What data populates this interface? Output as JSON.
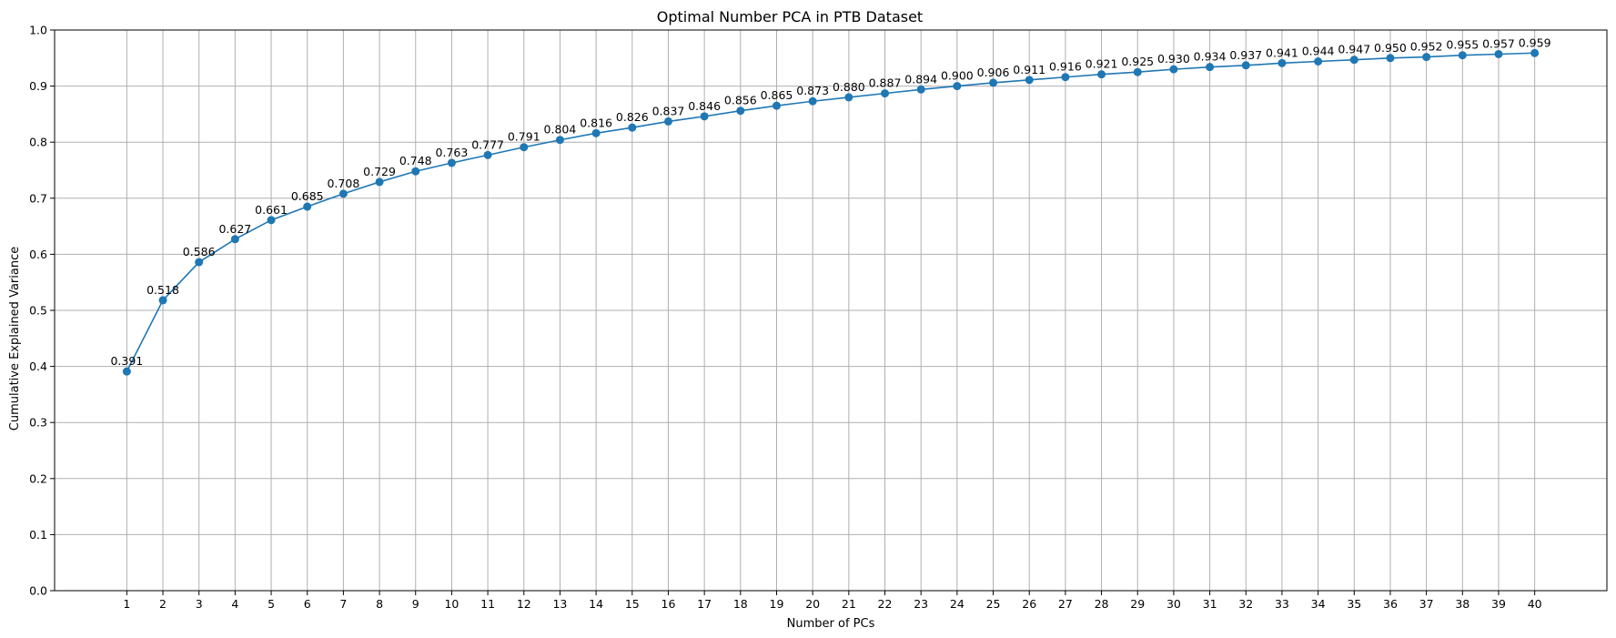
{
  "chart_data": {
    "type": "line",
    "title": "Optimal Number PCA in PTB Dataset",
    "xlabel": "Number of PCs",
    "ylabel": "Cumulative Explained Variance",
    "ylim": [
      0,
      1.0
    ],
    "xlim": [
      -1,
      42
    ],
    "yticks": [
      0.0,
      0.1,
      0.2,
      0.3,
      0.4,
      0.5,
      0.6,
      0.7,
      0.8,
      0.9,
      1.0
    ],
    "ytick_labels": [
      "0.0",
      "0.1",
      "0.2",
      "0.3",
      "0.4",
      "0.5",
      "0.6",
      "0.7",
      "0.8",
      "0.9",
      "1.0"
    ],
    "grid": true,
    "marker": "circle",
    "color": "#1f77b4",
    "x": [
      1,
      2,
      3,
      4,
      5,
      6,
      7,
      8,
      9,
      10,
      11,
      12,
      13,
      14,
      15,
      16,
      17,
      18,
      19,
      20,
      21,
      22,
      23,
      24,
      25,
      26,
      27,
      28,
      29,
      30,
      31,
      32,
      33,
      34,
      35,
      36,
      37,
      38,
      39,
      40
    ],
    "values": [
      0.391,
      0.518,
      0.586,
      0.627,
      0.661,
      0.685,
      0.708,
      0.729,
      0.748,
      0.763,
      0.777,
      0.791,
      0.804,
      0.816,
      0.826,
      0.837,
      0.846,
      0.856,
      0.865,
      0.873,
      0.88,
      0.887,
      0.894,
      0.9,
      0.906,
      0.911,
      0.916,
      0.921,
      0.925,
      0.93,
      0.934,
      0.937,
      0.941,
      0.944,
      0.947,
      0.95,
      0.952,
      0.955,
      0.957,
      0.959
    ],
    "data_labels": [
      "0.391",
      "0.518",
      "0.586",
      "0.627",
      "0.661",
      "0.685",
      "0.708",
      "0.729",
      "0.748",
      "0.763",
      "0.777",
      "0.791",
      "0.804",
      "0.816",
      "0.826",
      "0.837",
      "0.846",
      "0.856",
      "0.865",
      "0.873",
      "0.880",
      "0.887",
      "0.894",
      "0.900",
      "0.906",
      "0.911",
      "0.916",
      "0.921",
      "0.925",
      "0.930",
      "0.934",
      "0.937",
      "0.941",
      "0.944",
      "0.947",
      "0.950",
      "0.952",
      "0.955",
      "0.957",
      "0.959"
    ]
  }
}
